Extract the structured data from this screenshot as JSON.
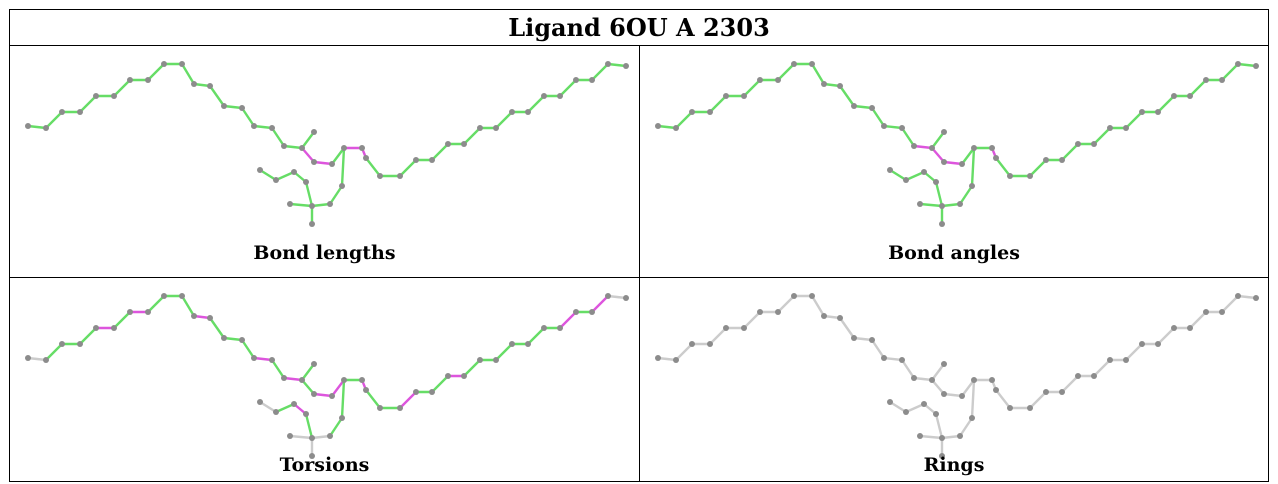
{
  "title": "Ligand 6OU A 2303",
  "panels": [
    {
      "key": "bond_lengths",
      "caption": "Bond lengths"
    },
    {
      "key": "bond_angles",
      "caption": "Bond angles"
    },
    {
      "key": "torsions",
      "caption": "Torsions"
    },
    {
      "key": "rings",
      "caption": "Rings"
    }
  ],
  "colors": {
    "normal": "#66dd66",
    "outlier": "#dd55dd",
    "neutral": "#cccccc",
    "atom": "#8c8c8c",
    "border": "#000000"
  }
}
